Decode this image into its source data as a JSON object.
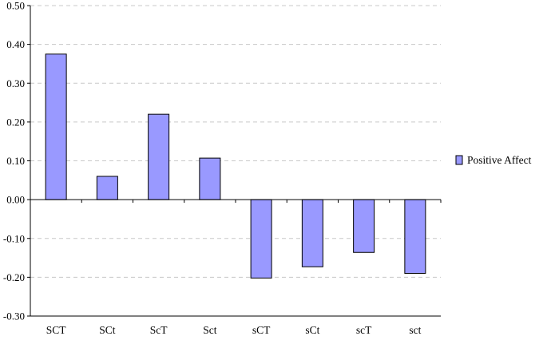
{
  "chart_data": {
    "type": "bar",
    "title": "",
    "xlabel": "",
    "ylabel": "",
    "categories": [
      "SCT",
      "SCt",
      "ScT",
      "Sct",
      "sCT",
      "sCt",
      "scT",
      "sct"
    ],
    "series": [
      {
        "name": "Positive Affect",
        "values": [
          0.375,
          0.06,
          0.22,
          0.107,
          -0.202,
          -0.173,
          -0.136,
          -0.19
        ]
      }
    ],
    "ylim": [
      -0.3,
      0.5
    ],
    "yticks": [
      0.5,
      0.4,
      0.3,
      0.2,
      0.1,
      0.0,
      -0.1,
      -0.2,
      -0.3
    ],
    "ytick_labels": [
      "0.50",
      "0.40",
      "0.30",
      "0.20",
      "0.10",
      "0.00",
      "-0.10",
      "-0.20",
      "-0.30"
    ],
    "grid": "horizontal dashed",
    "legend_position": "right",
    "colors": {
      "bar_fill": "#9999ff",
      "bar_stroke": "#000000",
      "axis": "#000000",
      "grid": "#c8c8c8"
    }
  }
}
